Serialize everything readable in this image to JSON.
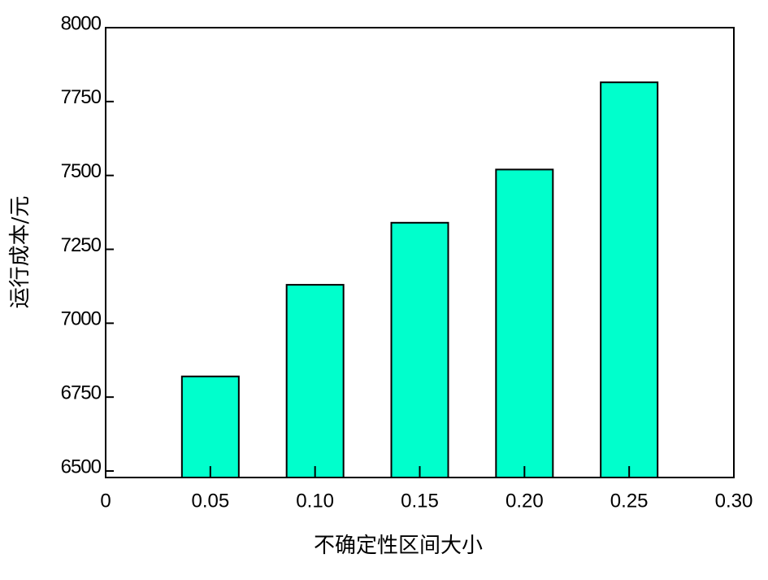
{
  "chart_data": {
    "type": "bar",
    "x_label": "不确定性区间大小",
    "y_label": "运行成本/元",
    "x": [
      0.05,
      {
        "value": 0.1,
        "label": "0.10"
      },
      0.15,
      {
        "value": 0.2,
        "label": "0.20"
      },
      0.25
    ],
    "values": [
      6820,
      7130,
      7340,
      7520,
      7815
    ],
    "color": "#00ffcc",
    "xlim": [
      0,
      0.3
    ],
    "xticks": [
      0,
      0.05,
      {
        "value": 0.1,
        "label": "0.10"
      },
      0.15,
      {
        "value": 0.2,
        "label": "0.20"
      },
      0.25,
      {
        "value": 0.3,
        "label": "0.30"
      }
    ],
    "ylim": [
      6478,
      8000
    ],
    "yticks": [
      6500,
      6750,
      7000,
      7250,
      7500,
      7750,
      8000
    ]
  }
}
